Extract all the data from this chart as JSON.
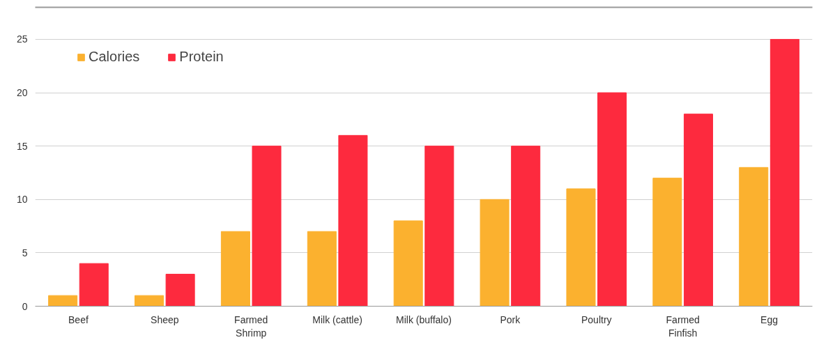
{
  "chart_data": {
    "type": "bar",
    "categories": [
      "Beef",
      "Sheep",
      "Farmed\nShrimp",
      "Milk (cattle)",
      "Milk (buffalo)",
      "Pork",
      "Poultry",
      "Farmed\nFinfish",
      "Egg"
    ],
    "series": [
      {
        "name": "Calories",
        "color": "#fbb12f",
        "values": [
          1,
          1,
          7,
          7,
          8,
          10,
          11,
          12,
          13
        ]
      },
      {
        "name": "Protein",
        "color": "#fd2a3e",
        "values": [
          4,
          3,
          15,
          16,
          15,
          15,
          20,
          18,
          25
        ]
      }
    ],
    "ylim": [
      0,
      28
    ],
    "yticks": [
      0,
      5,
      10,
      15,
      20,
      25
    ],
    "grid": "y",
    "legend": "top left"
  }
}
